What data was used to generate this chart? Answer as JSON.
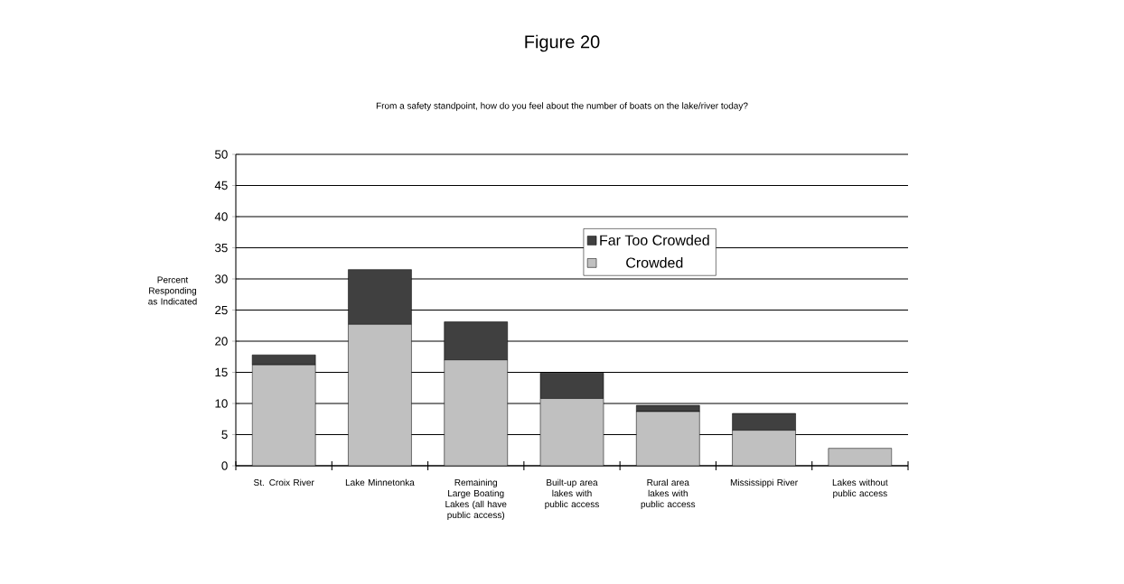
{
  "chart_data": {
    "type": "bar",
    "stacked": true,
    "title": "Figure 20",
    "subtitle": "From a safety standpoint, how do you feel about the number of boats on the lake/river today?",
    "ylabel": "Percent Responding as Indicated",
    "categories": [
      "St. Croix River",
      "Lake Minnetonka",
      "Remaining Large Boating Lakes (all have public access)",
      "Built-up area lakes with public access",
      "Rural area lakes with public access",
      "Mississippi River",
      "Lakes without public access"
    ],
    "series": [
      {
        "name": "Crowded",
        "color": "#c0c0c0",
        "values": [
          16.2,
          22.7,
          17.0,
          10.8,
          8.7,
          5.7,
          2.8
        ]
      },
      {
        "name": "Far Too Crowded",
        "color": "#404040",
        "values": [
          1.6,
          8.8,
          6.1,
          4.1,
          1.0,
          2.7,
          0
        ]
      }
    ],
    "ylim": [
      0,
      50
    ],
    "yticks": [
      0,
      5,
      10,
      15,
      20,
      25,
      30,
      35,
      40,
      45,
      50
    ],
    "grid": "y",
    "legend": "top right"
  }
}
